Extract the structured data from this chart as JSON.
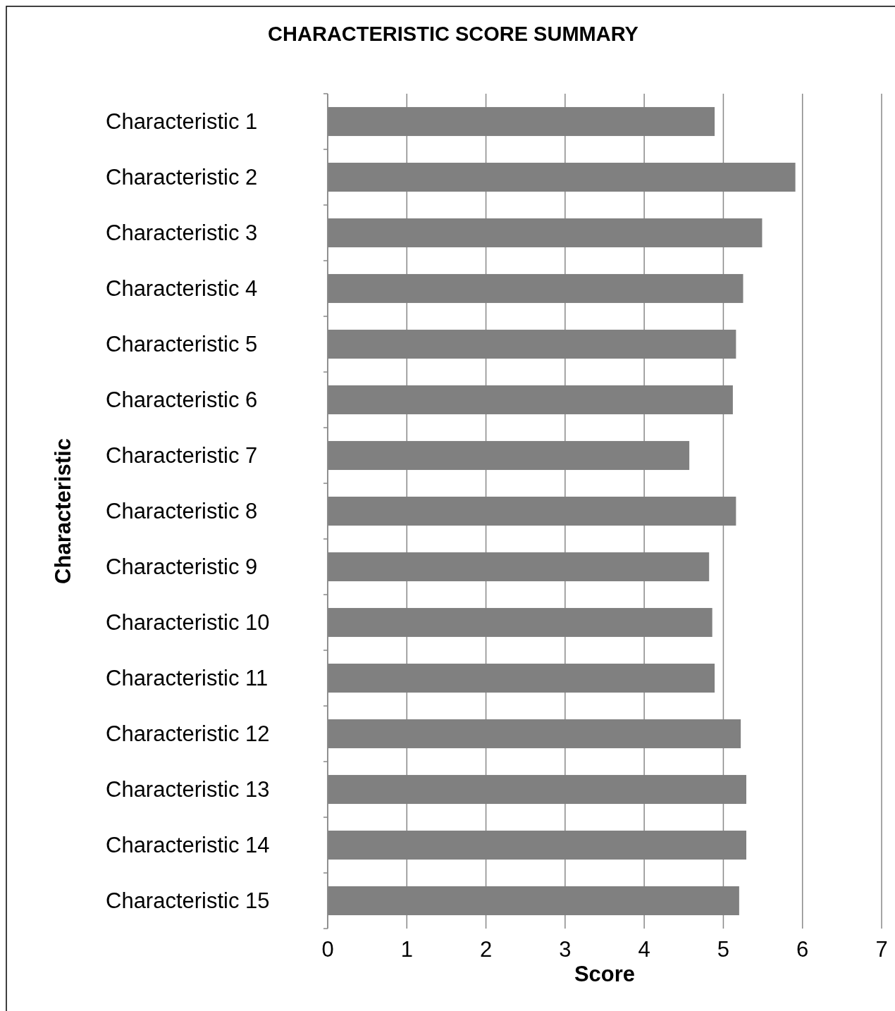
{
  "chart_data": {
    "type": "bar",
    "orientation": "horizontal",
    "title": "CHARACTERISTIC SCORE SUMMARY",
    "xlabel": "Score",
    "ylabel": "Characteristic",
    "categories": [
      "Characteristic 1",
      "Characteristic 2",
      "Characteristic 3",
      "Characteristic 4",
      "Characteristic 5",
      "Characteristic 6",
      "Characteristic 7",
      "Characteristic 8",
      "Characteristic 9",
      "Characteristic 10",
      "Characteristic 11",
      "Characteristic 12",
      "Characteristic 13",
      "Characteristic 14",
      "Characteristic 15"
    ],
    "values": [
      4.89,
      5.91,
      5.49,
      5.25,
      5.16,
      5.12,
      4.57,
      5.16,
      4.82,
      4.86,
      4.89,
      5.22,
      5.29,
      5.29,
      5.2
    ],
    "color": "#808080",
    "xlim": [
      0,
      7
    ],
    "xticks": [
      0,
      1,
      2,
      3,
      4,
      5,
      6,
      7
    ],
    "grid": "x"
  }
}
